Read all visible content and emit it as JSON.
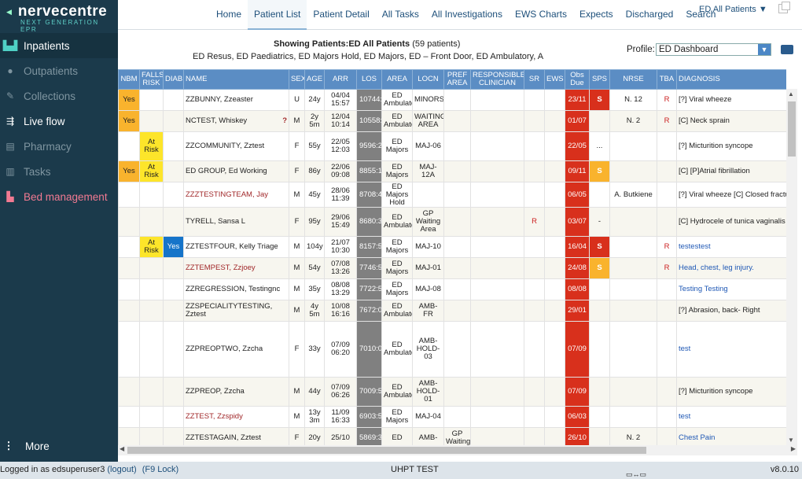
{
  "brand": {
    "name": "nervecentre",
    "tagline": "NEXT GENERATION EPR"
  },
  "sidebar": {
    "items": [
      {
        "label": "Inpatients",
        "icon": "bed-icon"
      },
      {
        "label": "Outpatients",
        "icon": "person-icon"
      },
      {
        "label": "Collections",
        "icon": "pen-icon"
      },
      {
        "label": "Live flow",
        "icon": "flow-icon"
      },
      {
        "label": "Pharmacy",
        "icon": "pill-icon"
      },
      {
        "label": "Tasks",
        "icon": "clipboard-icon"
      },
      {
        "label": "Bed management",
        "icon": "bed-management-icon"
      }
    ],
    "more": "More"
  },
  "topnav": {
    "tabs": [
      "Home",
      "Patient List",
      "Patient Detail",
      "All Tasks",
      "All Investigations",
      "EWS Charts",
      "Expects",
      "Discharged",
      "Search"
    ],
    "active_tab": "Patient List",
    "list_selector": "ED All Patients ▼"
  },
  "header": {
    "showing_label": "Showing Patients:",
    "showing_list": "ED All Patients",
    "count": "(59 patients)",
    "areas": "ED Resus, ED Paediatrics, ED Majors Hold, ED Majors, ED – Front Door, ED Ambulatory, A",
    "profile_label": "Profile:",
    "profile_value": "ED Dashboard"
  },
  "columns": [
    "NBM",
    "FALLS RISK",
    "DIAB",
    "NAME",
    "SEX",
    "AGE",
    "ARR",
    "LOS",
    "AREA",
    "LOCN",
    "PREF AREA",
    "RESPONSIBLE CLINICIAN",
    "SR",
    "EWS",
    "Obs Due",
    "SPS",
    "NRSE",
    "TBA",
    "DIAGNOSIS"
  ],
  "rows": [
    {
      "nbm": "Yes",
      "falls": "",
      "diab": "",
      "name": "ZZBUNNY, Zzeaster",
      "sex": "U",
      "age": "24y",
      "arr": "04/04 15:57",
      "los": "10744:",
      "area": "ED Ambulato",
      "locn": "MINORS",
      "pref": "",
      "clin": "",
      "sr": "",
      "ews": "",
      "obs": "23/11",
      "sps": "S",
      "nrse": "N. 12",
      "tba": "R",
      "diag": "[?] Viral wheeze"
    },
    {
      "nbm": "Yes",
      "falls": "",
      "diab": "",
      "name": "NCTEST, Whiskey",
      "flag": "?",
      "sex": "M",
      "age": "2y 5m",
      "arr": "12/04 10:14",
      "los": "10558:",
      "area": "ED Ambulato",
      "locn": "WAITING AREA",
      "pref": "",
      "clin": "",
      "sr": "",
      "ews": "",
      "obs": "01/07",
      "sps": "",
      "nrse": "N. 2",
      "tba": "R",
      "diag": "[C] Neck sprain"
    },
    {
      "nbm": "",
      "falls": "At Risk",
      "diab": "",
      "name": "ZZCOMMUNITY, Zztest",
      "sex": "F",
      "age": "55y",
      "arr": "22/05 12:03",
      "los": "9596:2",
      "area": "ED Majors",
      "locn": "MAJ-06",
      "pref": "",
      "clin": "",
      "sr": "",
      "ews": "",
      "obs": "22/05",
      "sps": "...",
      "nrse": "",
      "tba": "",
      "diag": "[?] Micturition syncope"
    },
    {
      "nbm": "Yes",
      "falls": "At Risk",
      "diab": "",
      "name": "ED GROUP, Ed Working",
      "sex": "F",
      "age": "86y",
      "arr": "22/06 09:08",
      "los": "8855:1",
      "area": "ED Majors",
      "locn": "MAJ-12A",
      "pref": "",
      "clin": "",
      "sr": "",
      "ews": "",
      "obs": "09/11",
      "sps": "S",
      "nrse": "",
      "tba": "",
      "diag": "[C] [P]Atrial fibrillation"
    },
    {
      "nbm": "",
      "falls": "",
      "diab": "",
      "name": "ZZZTESTINGTEAM, Jay",
      "sex": "M",
      "age": "45y",
      "arr": "28/06 11:39",
      "los": "8708:4",
      "area": "ED Majors Hold",
      "locn": "",
      "pref": "",
      "clin": "",
      "sr": "",
      "ews": "",
      "obs": "06/05",
      "sps": "",
      "nrse": "A. Butkiene",
      "tba": "",
      "diag": "[?] Viral wheeze [C] Closed fractu"
    },
    {
      "nbm": "",
      "falls": "",
      "diab": "",
      "name": "TYRELL, Sansa L",
      "sex": "F",
      "age": "95y",
      "arr": "29/06 15:49",
      "los": "8680:3",
      "area": "ED Ambulato",
      "locn": "GP Waiting Area",
      "pref": "",
      "clin": "",
      "sr": "R",
      "ews": "",
      "obs": "03/07",
      "sps": "-",
      "nrse": "",
      "tba": "",
      "diag": "[C] Hydrocele of tunica vaginalis"
    },
    {
      "nbm": "",
      "falls": "At Risk",
      "diab": "Yes",
      "name": "ZZTESTFOUR, Kelly Triage",
      "sex": "M",
      "age": "104y",
      "arr": "21/07 10:30",
      "los": "8157:5",
      "area": "ED Majors",
      "locn": "MAJ-10",
      "pref": "",
      "clin": "",
      "sr": "",
      "ews": "",
      "obs": "16/04",
      "sps": "S",
      "nrse": "",
      "tba": "R",
      "diag": "testestest"
    },
    {
      "nbm": "",
      "falls": "",
      "diab": "",
      "name": "ZZTEMPEST, Zzjoey",
      "sex": "M",
      "age": "54y",
      "arr": "07/08 13:26",
      "los": "7746:5",
      "area": "ED Majors",
      "locn": "MAJ-01",
      "pref": "",
      "clin": "",
      "sr": "",
      "ews": "",
      "obs": "24/08",
      "sps": "S",
      "nrse": "",
      "tba": "R",
      "diag": "Head, chest, leg injury."
    },
    {
      "nbm": "",
      "falls": "",
      "diab": "",
      "name": "ZZREGRESSION, Testingnc",
      "sex": "M",
      "age": "35y",
      "arr": "08/08 13:29",
      "los": "7722:5",
      "area": "ED Majors",
      "locn": "MAJ-08",
      "pref": "",
      "clin": "",
      "sr": "",
      "ews": "",
      "obs": "08/08",
      "sps": "",
      "nrse": "",
      "tba": "",
      "diag": "Testing Testing"
    },
    {
      "nbm": "",
      "falls": "",
      "diab": "",
      "name": "ZZSPECIALITYTESTING, Zztest",
      "sex": "M",
      "age": "4y 5m",
      "arr": "10/08 16:16",
      "los": "7672:0",
      "area": "ED Ambulato",
      "locn": "AMB-FR",
      "pref": "",
      "clin": "",
      "sr": "",
      "ews": "",
      "obs": "29/01",
      "sps": "",
      "nrse": "",
      "tba": "",
      "diag": "[?] Abrasion, back- Right"
    },
    {
      "nbm": "",
      "falls": "",
      "diab": "",
      "name": "ZZPREOPTWO, Zzcha",
      "sex": "F",
      "age": "33y",
      "arr": "07/09 06:20",
      "los": "7010:0",
      "area": "ED Ambulato",
      "locn": "AMB-HOLD-03",
      "pref": "",
      "clin": "",
      "sr": "",
      "ews": "",
      "obs": "07/09",
      "sps": "",
      "nrse": "",
      "tba": "",
      "diag": "test"
    },
    {
      "nbm": "",
      "falls": "",
      "diab": "",
      "name": "ZZPREOP, Zzcha",
      "sex": "M",
      "age": "44y",
      "arr": "07/09 06:26",
      "los": "7009:5",
      "area": "ED Ambulato",
      "locn": "AMB-HOLD-01",
      "pref": "",
      "clin": "",
      "sr": "",
      "ews": "",
      "obs": "07/09",
      "sps": "",
      "nrse": "",
      "tba": "",
      "diag": "[?] Micturition syncope"
    },
    {
      "nbm": "",
      "falls": "",
      "diab": "",
      "name": "ZZTEST, Zzspidy",
      "sex": "M",
      "age": "13y 3m",
      "arr": "11/09 16:33",
      "los": "6903:5",
      "area": "ED Majors",
      "locn": "MAJ-04",
      "pref": "",
      "clin": "",
      "sr": "",
      "ews": "",
      "obs": "06/03",
      "sps": "",
      "nrse": "",
      "tba": "",
      "diag": "test"
    },
    {
      "nbm": "",
      "falls": "",
      "diab": "",
      "name": "ZZTESTAGAIN, Zztest",
      "sex": "F",
      "age": "20y",
      "arr": "25/10",
      "los": "5869:3",
      "area": "ED",
      "locn": "AMB-",
      "pref": "GP Waiting",
      "clin": "",
      "sr": "",
      "ews": "",
      "obs": "26/10",
      "sps": "",
      "nrse": "N. 2",
      "tba": "",
      "diag": "Chest Pain"
    }
  ],
  "status": {
    "logged_in": "Logged in as edsuperuser3",
    "logout": "(logout)",
    "f9": "(F9 Lock)",
    "site": "UHPT TEST",
    "version": "v8.0.10"
  },
  "colors": {
    "sidebar": "#1b3a4b",
    "header": "#5b8dc4",
    "obs_due": "#d8301c",
    "nbm_yes": "#f9b32d",
    "falls_risk": "#fde52a",
    "diab_yes": "#1674c9",
    "los": "#808080"
  }
}
